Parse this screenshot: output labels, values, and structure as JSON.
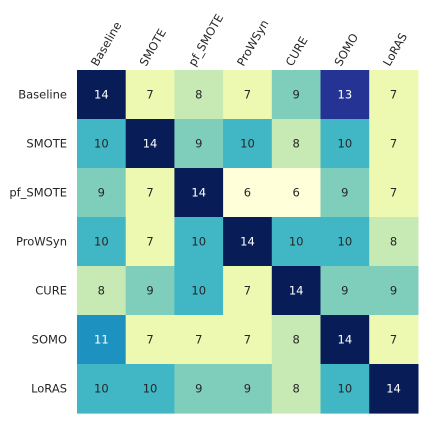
{
  "chart_data": {
    "type": "heatmap",
    "title": "",
    "xlabel": "",
    "ylabel": "",
    "x_categories": [
      "Baseline",
      "SMOTE",
      "pf_SMOTE",
      "ProWSyn",
      "CURE",
      "SOMO",
      "LoRAS"
    ],
    "y_categories": [
      "Baseline",
      "SMOTE",
      "pf_SMOTE",
      "ProWSyn",
      "CURE",
      "SOMO",
      "LoRAS"
    ],
    "values": [
      [
        14,
        7,
        8,
        7,
        9,
        13,
        7
      ],
      [
        10,
        14,
        9,
        10,
        8,
        10,
        7
      ],
      [
        9,
        7,
        14,
        6,
        6,
        9,
        7
      ],
      [
        10,
        7,
        10,
        14,
        10,
        10,
        8
      ],
      [
        8,
        9,
        10,
        7,
        14,
        9,
        9
      ],
      [
        11,
        7,
        7,
        7,
        8,
        14,
        7
      ],
      [
        10,
        10,
        9,
        9,
        8,
        10,
        14
      ]
    ],
    "value_range": [
      6,
      14
    ],
    "colormap": "YlGnBu",
    "x_tick_position": "top",
    "x_tick_rotation": -60,
    "grid": false,
    "legend": "none",
    "data_labels": true
  }
}
